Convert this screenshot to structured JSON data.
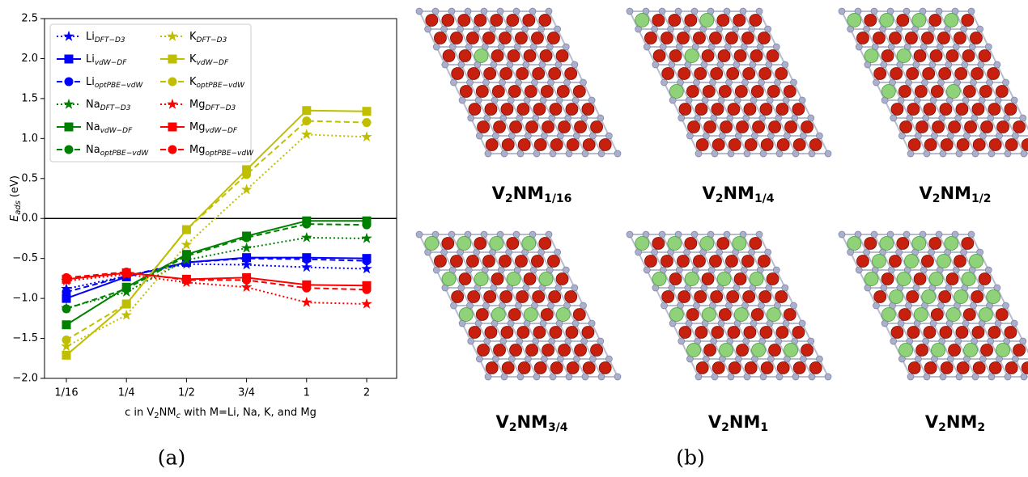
{
  "chart_data": {
    "type": "line",
    "categories": [
      "1/16",
      "1/4",
      "1/2",
      "3/4",
      "1",
      "2"
    ],
    "ylabel": [
      "E",
      "ads",
      "(eV)"
    ],
    "xlabel": [
      "c in V",
      "2",
      "NM",
      "c",
      "with M=Li, Na, K, and Mg"
    ],
    "ylim": [
      -2.0,
      2.5
    ],
    "yticks": [
      {
        "value": -2.0,
        "label": "−2.0"
      },
      {
        "value": -1.5,
        "label": "−1.5"
      },
      {
        "value": -1.0,
        "label": "−1.0"
      },
      {
        "value": -0.5,
        "label": "−0.5"
      },
      {
        "value": 0,
        "label": "0.0"
      },
      0.5,
      {
        "value": 1.0,
        "label": "1.0"
      },
      1.5,
      {
        "value": 2.0,
        "label": "2.0"
      },
      2.5
    ],
    "hline": 0,
    "legend": "upper left",
    "series": [
      {
        "name": [
          "Li",
          "DFT−D3"
        ],
        "color": "#0000ff",
        "style": "dotted",
        "marker": "star",
        "values": [
          -0.88,
          -0.72,
          -0.57,
          -0.58,
          -0.61,
          -0.63
        ]
      },
      {
        "name": [
          "Li",
          "vdW−DF"
        ],
        "color": "#0000ff",
        "style": "solid",
        "marker": "square",
        "values": [
          -1.0,
          -0.73,
          -0.55,
          -0.49,
          -0.49,
          -0.5
        ]
      },
      {
        "name": [
          "Li",
          "optPBE−vdW"
        ],
        "color": "#0000ff",
        "style": "dashed",
        "marker": "circle",
        "values": [
          -0.92,
          -0.72,
          -0.55,
          -0.5,
          -0.51,
          -0.53
        ]
      },
      {
        "name": [
          "Na",
          "DFT−D3"
        ],
        "color": "#008000",
        "style": "dotted",
        "marker": "star",
        "values": [
          -1.12,
          -0.92,
          -0.52,
          -0.37,
          -0.24,
          -0.25
        ]
      },
      {
        "name": [
          "Na",
          "vdW−DF"
        ],
        "color": "#008000",
        "style": "solid",
        "marker": "square",
        "values": [
          -1.33,
          -0.86,
          -0.45,
          -0.22,
          -0.03,
          -0.03
        ]
      },
      {
        "name": [
          "Na",
          "optPBE−vdW"
        ],
        "color": "#008000",
        "style": "dashed",
        "marker": "circle",
        "values": [
          -1.13,
          -0.88,
          -0.47,
          -0.24,
          -0.07,
          -0.08
        ]
      },
      {
        "name": [
          "K",
          "DFT−D3"
        ],
        "color": "#bfbf00",
        "style": "dotted",
        "marker": "star",
        "values": [
          -1.6,
          -1.21,
          -0.33,
          0.36,
          1.05,
          1.02
        ]
      },
      {
        "name": [
          "K",
          "vdW−DF"
        ],
        "color": "#bfbf00",
        "style": "solid",
        "marker": "square",
        "values": [
          -1.71,
          -1.07,
          -0.14,
          0.61,
          1.35,
          1.34
        ]
      },
      {
        "name": [
          "K",
          "optPBE−vdW"
        ],
        "color": "#bfbf00",
        "style": "dashed",
        "marker": "circle",
        "values": [
          -1.52,
          -1.07,
          -0.14,
          0.55,
          1.22,
          1.2
        ]
      },
      {
        "name": [
          "Mg",
          "DFT−D3"
        ],
        "color": "#ff0000",
        "style": "dotted",
        "marker": "star",
        "values": [
          -0.78,
          -0.7,
          -0.8,
          -0.86,
          -1.05,
          -1.07
        ]
      },
      {
        "name": [
          "Mg",
          "vdW−DF"
        ],
        "color": "#ff0000",
        "style": "solid",
        "marker": "square",
        "values": [
          -0.76,
          -0.68,
          -0.76,
          -0.74,
          -0.83,
          -0.84
        ]
      },
      {
        "name": [
          "Mg",
          "optPBE−vdW"
        ],
        "color": "#ff0000",
        "style": "dashed",
        "marker": "circle",
        "values": [
          -0.74,
          -0.67,
          -0.77,
          -0.77,
          -0.87,
          -0.89
        ]
      }
    ]
  },
  "panel_labels": [
    "(a)",
    "(b)"
  ],
  "structures": [
    [
      "V",
      "2",
      "NM",
      "1/16"
    ],
    [
      "V",
      "2",
      "NM",
      "1/4"
    ],
    [
      "V",
      "2",
      "NM",
      "1/2"
    ],
    [
      "V",
      "2",
      "NM",
      "3/4"
    ],
    [
      "V",
      "2",
      "NM",
      "1"
    ],
    [
      "V",
      "2",
      "NM",
      "2"
    ]
  ]
}
